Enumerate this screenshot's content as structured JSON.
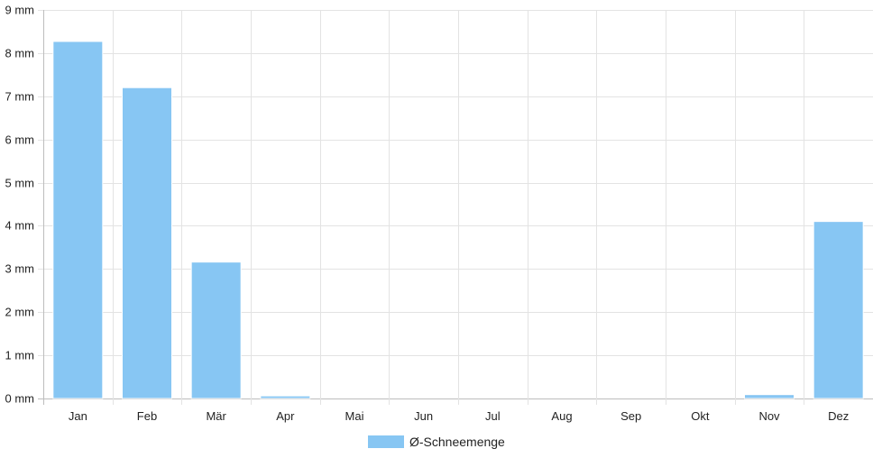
{
  "chart_data": {
    "type": "bar",
    "categories": [
      "Jan",
      "Feb",
      "Mär",
      "Apr",
      "Mai",
      "Jun",
      "Jul",
      "Aug",
      "Sep",
      "Okt",
      "Nov",
      "Dez"
    ],
    "series": [
      {
        "name": "Ø-Schneemenge",
        "values": [
          8.27,
          7.2,
          3.16,
          0.06,
          0,
          0,
          0,
          0,
          0,
          0,
          0.09,
          4.1
        ]
      }
    ],
    "y_ticks": [
      "0 mm",
      "1 mm",
      "2 mm",
      "3 mm",
      "4 mm",
      "5 mm",
      "6 mm",
      "7 mm",
      "8 mm",
      "9 mm"
    ],
    "ylim": [
      0,
      9
    ],
    "grid": true,
    "legend_position": "bottom",
    "colors": {
      "bar": "#87c6f3",
      "grid": "#e3e3e3",
      "axis": "#bdbdbd"
    }
  }
}
